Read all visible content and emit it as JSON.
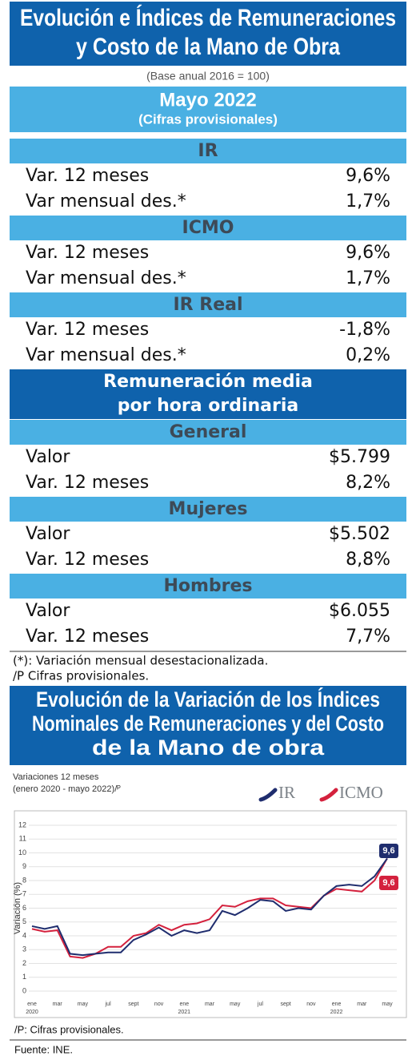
{
  "header": {
    "title_lines": [
      "Evolución e Índices de Remuneraciones",
      "y Costo de la Mano de Obra"
    ],
    "base": "(Base anual 2016 = 100)",
    "period": "Mayo  2022",
    "period_note": "(Cifras provisionales)"
  },
  "indices": [
    {
      "title": "IR",
      "rows": [
        [
          "Var. 12 meses",
          "9,6%"
        ],
        [
          "Var mensual des.*",
          "1,7%"
        ]
      ]
    },
    {
      "title": "ICMO",
      "rows": [
        [
          "Var. 12 meses",
          "9,6%"
        ],
        [
          "Var mensual des.*",
          "1,7%"
        ]
      ]
    },
    {
      "title": "IR Real",
      "rows": [
        [
          "Var. 12 meses",
          "-1,8%"
        ],
        [
          "Var mensual des.*",
          "0,2%"
        ]
      ]
    }
  ],
  "wage_title_lines": [
    "Remuneración media",
    "por hora ordinaria"
  ],
  "wages": [
    {
      "title": "General",
      "rows": [
        [
          "Valor",
          "$5.799"
        ],
        [
          "Var. 12 meses",
          "8,2%"
        ]
      ]
    },
    {
      "title": "Mujeres",
      "rows": [
        [
          "Valor",
          "$5.502"
        ],
        [
          "Var. 12 meses",
          "8,8%"
        ]
      ]
    },
    {
      "title": "Hombres",
      "rows": [
        [
          "Valor",
          "$6.055"
        ],
        [
          "Var. 12 meses",
          "7,7%"
        ]
      ]
    }
  ],
  "notes": [
    "(*): Variación mensual desestacionalizada.",
    "/P Cifras provisionales."
  ],
  "chart": {
    "type": "line",
    "title_lines": [
      "Evolución de la Variación de los Índices",
      "Nominales de Remuneraciones y del Costo",
      "de la Mano de obra"
    ],
    "subtitle_lines": [
      "Variaciones 12 meses",
      "(enero 2020 - mayo 2022)/ᴾ"
    ],
    "y_label": "Variación (%)",
    "ylim": [
      0,
      12
    ],
    "yticks": [
      0,
      1,
      2,
      3,
      4,
      5,
      6,
      7,
      8,
      9,
      10,
      11,
      12
    ],
    "grid": true,
    "categories": [
      "ene",
      null,
      "mar",
      null,
      "may",
      null,
      "jul",
      null,
      "sept",
      null,
      "nov",
      null,
      "ene",
      null,
      "mar",
      null,
      "may",
      null,
      "jul",
      null,
      "sept",
      null,
      "nov",
      null,
      "ene",
      null,
      "mar",
      null,
      "may"
    ],
    "years": [
      "2020",
      "2021",
      "2022"
    ],
    "series": [
      {
        "name": "IR",
        "color": "#1f2d6e",
        "values": [
          4.7,
          4.5,
          4.7,
          2.7,
          2.6,
          2.7,
          2.8,
          2.8,
          3.7,
          4.1,
          4.6,
          4.0,
          4.4,
          4.2,
          4.4,
          5.8,
          5.5,
          6.0,
          6.6,
          6.5,
          5.8,
          6.0,
          5.9,
          6.9,
          7.6,
          7.7,
          7.6,
          8.3,
          9.6
        ],
        "end_label": {
          "value": 9.6,
          "label": "9,6"
        }
      },
      {
        "name": "ICMO",
        "color": "#d4213d",
        "values": [
          4.5,
          4.3,
          4.4,
          2.5,
          2.4,
          2.7,
          3.2,
          3.2,
          4.0,
          4.2,
          4.8,
          4.4,
          4.8,
          4.9,
          5.2,
          6.2,
          6.1,
          6.5,
          6.7,
          6.7,
          6.2,
          6.1,
          6.0,
          6.9,
          7.4,
          7.3,
          7.2,
          8.0,
          9.6
        ],
        "end_label": {
          "value": 9.6,
          "label": "9,6"
        }
      }
    ]
  },
  "chart_note": "/P:   Cifras provisionales.",
  "source": "Fuente: INE."
}
